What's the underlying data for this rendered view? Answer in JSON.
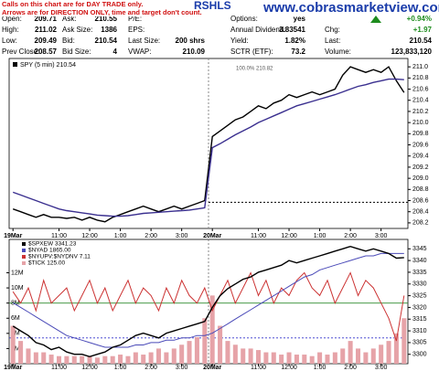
{
  "header": {
    "note": [
      "Calls on this chart are for DAY TRADE only.",
      "Arrows are for DIRECTION ONLY, time and target don't count."
    ],
    "symbol_title": "RSHLS",
    "site": "www.cobrasmarketview.com",
    "quote": [
      [
        {
          "label": "Open:",
          "value": "209.71"
        },
        {
          "label": "High:",
          "value": "211.02"
        },
        {
          "label": "Low:",
          "value": "209.49"
        },
        {
          "label": "Prev Close:",
          "value": "208.57"
        }
      ],
      [
        {
          "label": "Ask:",
          "value": "210.55"
        },
        {
          "label": "Ask Size:",
          "value": "1386"
        },
        {
          "label": "Bid:",
          "value": "210.54"
        },
        {
          "label": "Bid Size:",
          "value": "4"
        }
      ],
      [
        {
          "label": "P/E:"
        },
        {
          "label": "EPS:"
        },
        {
          "label": "Last Size:",
          "value": "200 shrs"
        },
        {
          "label": "VWAP:",
          "value": "210.09"
        }
      ],
      [
        {
          "label": "Options:",
          "value": "yes"
        },
        {
          "label": "Annual Dividend:",
          "value": "3.83541"
        },
        {
          "label": "Yield:",
          "value": "1.82%"
        },
        {
          "label": "SCTR (ETF):",
          "value": "73.2"
        }
      ],
      [
        {
          "value": "+0.94%"
        },
        {
          "label": "Chg:",
          "value": "+1.97"
        },
        {
          "label": "Last:",
          "value": "210.54"
        },
        {
          "label": "Volume:",
          "value": "123,833,120"
        }
      ]
    ]
  },
  "chart_data": [
    {
      "type": "line",
      "legend": "SPY (5 min) 210.54",
      "annotation": "100.0% 210.82",
      "categories": [
        "19Mar",
        null,
        null,
        null,
        null,
        null,
        "11:00",
        null,
        null,
        null,
        "12:00",
        null,
        null,
        null,
        "1:00",
        null,
        null,
        null,
        "2:00",
        null,
        null,
        null,
        "3:00",
        null,
        null,
        null,
        "20Mar",
        null,
        null,
        null,
        null,
        null,
        "11:00",
        null,
        null,
        null,
        "12:00",
        null,
        null,
        null,
        "1:00",
        null,
        null,
        null,
        "2:00",
        null,
        null,
        null,
        "3:00",
        null,
        null,
        null
      ],
      "ylim": [
        208.1,
        211.15
      ],
      "yticks": [
        208.2,
        208.4,
        208.6,
        208.8,
        {
          "value": 209,
          "label": "209.0"
        },
        209.2,
        209.4,
        209.6,
        209.8,
        {
          "value": 210,
          "label": "210.0"
        },
        210.2,
        210.4,
        210.6,
        210.8,
        {
          "value": 211,
          "label": "211.0"
        }
      ],
      "hlines": [
        {
          "value": 208.57,
          "color": "#000000",
          "axis": "y"
        }
      ],
      "series": [
        {
          "name": "SPY",
          "color": "#000000",
          "axis": "y",
          "mark": "line",
          "values": [
            208.45,
            208.4,
            208.35,
            208.3,
            208.35,
            208.3,
            208.3,
            208.28,
            208.3,
            208.25,
            208.3,
            208.25,
            208.22,
            208.3,
            208.35,
            208.4,
            208.45,
            208.5,
            208.45,
            208.4,
            208.45,
            208.5,
            208.45,
            208.5,
            208.55,
            208.6,
            209.75,
            209.85,
            209.95,
            210.05,
            210.1,
            210.2,
            210.3,
            210.25,
            210.35,
            210.4,
            210.5,
            210.45,
            210.5,
            210.55,
            210.5,
            210.55,
            210.6,
            210.85,
            211.0,
            210.95,
            210.9,
            210.95,
            210.9,
            211.0,
            210.75,
            210.54
          ]
        },
        {
          "name": "MA",
          "color": "#3a2f8f",
          "axis": "y",
          "mark": "line",
          "values": [
            208.75,
            208.7,
            208.65,
            208.6,
            208.55,
            208.5,
            208.45,
            208.42,
            208.4,
            208.38,
            208.36,
            208.34,
            208.33,
            208.32,
            208.32,
            208.33,
            208.35,
            208.37,
            208.38,
            208.39,
            208.4,
            208.41,
            208.42,
            208.43,
            208.45,
            208.47,
            209.55,
            209.62,
            209.7,
            209.78,
            209.85,
            209.92,
            210.0,
            210.06,
            210.12,
            210.18,
            210.24,
            210.3,
            210.34,
            210.38,
            210.42,
            210.46,
            210.5,
            210.55,
            210.6,
            210.65,
            210.68,
            210.72,
            210.75,
            210.78,
            210.78,
            210.77
          ]
        }
      ]
    },
    {
      "type": "line",
      "categories": [
        "19Mar",
        null,
        null,
        null,
        null,
        null,
        "11:00",
        null,
        null,
        null,
        "12:00",
        null,
        null,
        null,
        "1:00",
        null,
        null,
        null,
        "2:00",
        null,
        null,
        null,
        "3:00",
        null,
        null,
        null,
        "20Mar",
        null,
        null,
        null,
        null,
        null,
        "11:00",
        null,
        null,
        null,
        "12:00",
        null,
        null,
        null,
        "1:00",
        null,
        null,
        null,
        "2:00",
        null,
        null,
        null,
        "3:00",
        null,
        null,
        null
      ],
      "ylim": [
        3296,
        3349
      ],
      "yticks": [
        3300,
        3305,
        3310,
        3315,
        3320,
        3325,
        3330,
        3335,
        3340,
        3345
      ],
      "y2lim": [
        0,
        16400000
      ],
      "y2ticks": [
        {
          "value": 2000000,
          "label": "2M"
        },
        {
          "value": 4000000,
          "label": "4M"
        },
        {
          "value": 6000000,
          "label": "6M"
        },
        {
          "value": 8000000,
          "label": "8M"
        },
        {
          "value": 10000000,
          "label": "10M"
        },
        {
          "value": 12000000,
          "label": "12M"
        }
      ],
      "hlines": [
        {
          "value": 8000000,
          "color": "#2e8b2e",
          "axis": "y2"
        },
        {
          "value": 3307,
          "color": "#3333cc",
          "axis": "y"
        }
      ],
      "series": [
        {
          "name": "$TICK 125.00",
          "color": "#e6a3a8",
          "axis": "y2",
          "mark": "bar",
          "values": [
            5000000,
            3000000,
            2000000,
            1500000,
            1500000,
            1200000,
            1000000,
            1000000,
            1000000,
            1000000,
            1000000,
            800000,
            1000000,
            1000000,
            1200000,
            1000000,
            1500000,
            1200000,
            1500000,
            2000000,
            1500000,
            2000000,
            2500000,
            3000000,
            3500000,
            6000000,
            9000000,
            5000000,
            3000000,
            2500000,
            2000000,
            2000000,
            1800000,
            1500000,
            1500000,
            1200000,
            1500000,
            1200000,
            1200000,
            1000000,
            1500000,
            1200000,
            1500000,
            2000000,
            3000000,
            2000000,
            1500000,
            2000000,
            2500000,
            3000000,
            4000000,
            6000000
          ]
        },
        {
          "name": "$NYUPV:$NYDNV 7.11",
          "color": "#cc3333",
          "axis": "y2",
          "mark": "line",
          "values": [
            9500000,
            8000000,
            10000000,
            7000000,
            11000000,
            8000000,
            9000000,
            10000000,
            7000000,
            9000000,
            11000000,
            8000000,
            10000000,
            7000000,
            9000000,
            11000000,
            8000000,
            10000000,
            9000000,
            7000000,
            10000000,
            8000000,
            11000000,
            9000000,
            8000000,
            10000000,
            7000000,
            9000000,
            11000000,
            8000000,
            10000000,
            12000000,
            9000000,
            11000000,
            8000000,
            10000000,
            9000000,
            11000000,
            12000000,
            10000000,
            9000000,
            11000000,
            8000000,
            10000000,
            12000000,
            9000000,
            11000000,
            10000000,
            8000000,
            6000000,
            3000000,
            9000000
          ]
        },
        {
          "name": "$NYAD 1865.00",
          "color": "#4a4ab8",
          "axis": "y",
          "mark": "line",
          "values": [
            3322,
            3320,
            3318,
            3316,
            3314,
            3312,
            3310,
            3308,
            3307,
            3306,
            3305,
            3304,
            3303,
            3303,
            3303,
            3303,
            3304,
            3304,
            3305,
            3305,
            3306,
            3306,
            3307,
            3307,
            3308,
            3308,
            3309,
            3311,
            3313,
            3315,
            3317,
            3319,
            3321,
            3323,
            3325,
            3327,
            3329,
            3331,
            3333,
            3334,
            3336,
            3337,
            3338,
            3339,
            3340,
            3341,
            3342,
            3342,
            3343,
            3343,
            3343,
            3343
          ]
        },
        {
          "name": "$SPXEW 3341.23",
          "color": "#000000",
          "axis": "y",
          "mark": "line",
          "values": [
            3312,
            3310,
            3308,
            3305,
            3304,
            3302,
            3303,
            3301,
            3300,
            3300,
            3299,
            3300,
            3301,
            3303,
            3304,
            3306,
            3308,
            3309,
            3308,
            3307,
            3309,
            3310,
            3311,
            3312,
            3313,
            3314,
            3320,
            3325,
            3328,
            3330,
            3332,
            3333,
            3335,
            3336,
            3337,
            3338,
            3340,
            3339,
            3340,
            3341,
            3342,
            3343,
            3344,
            3345,
            3346,
            3345,
            3344,
            3345,
            3344,
            3343,
            3341,
            3341.23
          ]
        }
      ]
    }
  ]
}
